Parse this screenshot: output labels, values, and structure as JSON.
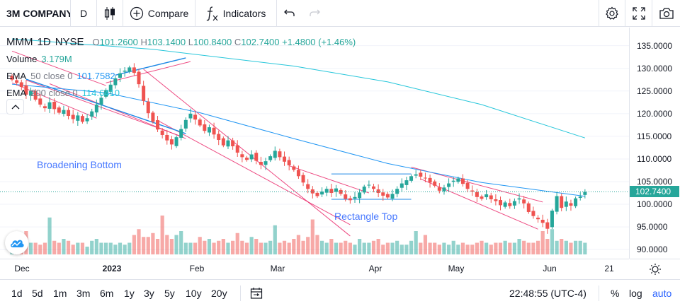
{
  "toolbar": {
    "symbol": "3M COMPANY",
    "interval": "D",
    "compare_label": "Compare",
    "indicators_label": "Indicators",
    "icons": [
      "chart-type-candles-icon",
      "compare-plus-icon",
      "indicators-fx-icon",
      "undo-icon",
      "redo-icon",
      "settings-gear-icon",
      "fullscreen-icon",
      "camera-icon"
    ]
  },
  "legend": {
    "ticker": "MMM",
    "interval": "1D",
    "exchange": "NYSE",
    "open_label": "O",
    "open": "101.2600",
    "high_label": "H",
    "high": "103.1400",
    "low_label": "L",
    "low": "100.8400",
    "close_label": "C",
    "close": "102.7400",
    "change": "+1.4800 (+1.46%)",
    "volume_name": "Volume",
    "volume_value": "3.179M",
    "ema50_name": "EMA",
    "ema50_params": "50 close 0",
    "ema50_value": "101.7582",
    "ema200_name": "EMA",
    "ema200_params": "200 close 0",
    "ema200_value": "114.6410"
  },
  "annotations": {
    "broadening_bottom": "Broadening Bottom",
    "rectangle_top": "Rectangle Top"
  },
  "price_axis": {
    "ticks": [
      "135.0000",
      "130.0000",
      "125.0000",
      "120.0000",
      "115.0000",
      "110.0000",
      "105.0000",
      "100.0000",
      "95.0000",
      "90.0000"
    ],
    "last_price": "102.7400"
  },
  "time_axis": {
    "ticks": [
      "Dec",
      "2023",
      "Feb",
      "Mar",
      "Apr",
      "May",
      "Jun",
      "21"
    ]
  },
  "bottom_bar": {
    "ranges": [
      "1d",
      "5d",
      "1m",
      "3m",
      "6m",
      "1y",
      "3y",
      "5y",
      "10y",
      "20y"
    ],
    "clock": "22:48:55 (UTC-4)",
    "percent_label": "%",
    "log_label": "log",
    "auto_label": "auto"
  },
  "colors": {
    "up": "#26a69a",
    "down": "#ef5350",
    "ema50": "#2196f3",
    "ema200": "#26c6da",
    "pattern_lines": "#e91e63",
    "accent": "#2962ff"
  },
  "chart_data": {
    "type": "candlestick",
    "ylim": [
      88,
      139
    ],
    "closes": [
      127.5,
      126.8,
      125.9,
      124.2,
      125.0,
      123.1,
      122.0,
      121.2,
      122.5,
      121.0,
      120.2,
      120.8,
      119.5,
      118.8,
      119.6,
      118.2,
      119.0,
      120.5,
      122.0,
      123.5,
      125.2,
      126.4,
      127.8,
      128.9,
      129.5,
      130.2,
      129.0,
      126.5,
      122.8,
      120.1,
      118.2,
      116.5,
      115.3,
      114.1,
      113.2,
      114.8,
      116.6,
      118.6,
      120.0,
      118.7,
      117.4,
      116.2,
      117.0,
      115.4,
      114.2,
      113.0,
      114.1,
      112.8,
      111.4,
      110.4,
      109.8,
      111.0,
      109.6,
      108.7,
      109.5,
      110.6,
      111.8,
      110.4,
      109.4,
      108.6,
      107.6,
      106.2,
      104.8,
      103.4,
      102.4,
      101.8,
      102.8,
      103.4,
      102.5,
      103.5,
      102.3,
      101.2,
      100.9,
      101.6,
      102.6,
      103.9,
      104.3,
      103.4,
      102.5,
      101.9,
      101.5,
      102.3,
      103.4,
      104.6,
      105.3,
      106.2,
      106.6,
      106.1,
      105.8,
      104.8,
      104.1,
      103.0,
      103.7,
      104.6,
      105.2,
      105.7,
      104.5,
      103.4,
      102.8,
      101.6,
      101.2,
      102.2,
      101.1,
      100.7,
      99.8,
      100.4,
      99.6,
      100.7,
      101.3,
      100.2,
      98.3,
      97.4,
      96.7,
      95.9,
      94.6,
      98.6,
      101.8,
      99.2,
      100.6,
      99.7,
      101.3,
      101.7,
      102.74
    ],
    "volume_levels": [
      0.35,
      0.3,
      0.25,
      0.6,
      0.3,
      0.3,
      0.25,
      0.3,
      0.95,
      0.35,
      0.3,
      0.4,
      0.35,
      0.25,
      0.3,
      0.3,
      0.2,
      0.35,
      0.4,
      0.3,
      0.3,
      0.3,
      0.25,
      0.3,
      0.25,
      0.3,
      0.5,
      0.65,
      0.45,
      0.45,
      0.55,
      0.4,
      1.0,
      0.5,
      0.4,
      0.5,
      0.6,
      0.3,
      0.3,
      0.3,
      0.45,
      0.35,
      0.4,
      0.3,
      0.35,
      0.4,
      0.3,
      0.35,
      0.55,
      0.35,
      0.3,
      0.45,
      0.4,
      0.3,
      0.3,
      0.35,
      0.75,
      0.3,
      0.35,
      0.3,
      0.4,
      0.5,
      0.35,
      0.45,
      0.9,
      0.5,
      0.35,
      0.3,
      0.4,
      0.3,
      0.3,
      0.35,
      0.3,
      0.25,
      0.4,
      0.3,
      0.3,
      0.35,
      0.4,
      0.25,
      0.3,
      0.3,
      0.35,
      0.25,
      0.25,
      0.35,
      0.6,
      0.3,
      0.5,
      0.3,
      0.3,
      0.25,
      0.3,
      0.25,
      0.35,
      0.25,
      0.3,
      0.25,
      0.25,
      0.3,
      0.35,
      0.3,
      0.25,
      0.3,
      0.3,
      0.35,
      0.3,
      0.3,
      0.4,
      0.35,
      0.3,
      0.3,
      0.35,
      0.6,
      0.4,
      0.65,
      0.35,
      0.4,
      0.35,
      0.3,
      0.35,
      0.35,
      0.3
    ],
    "ema50": [
      [
        0,
        126.5
      ],
      [
        20,
        124.6
      ],
      [
        40,
        120.2
      ],
      [
        60,
        114.5
      ],
      [
        80,
        109.0
      ],
      [
        100,
        104.8
      ],
      [
        122,
        101.76
      ]
    ],
    "ema200": [
      [
        0,
        136.5
      ],
      [
        30,
        134.2
      ],
      [
        60,
        130.5
      ],
      [
        80,
        127.0
      ],
      [
        100,
        122.0
      ],
      [
        122,
        114.64
      ]
    ],
    "patterns": [
      {
        "name": "Broadening Bottom"
      },
      {
        "name": "Rectangle Top",
        "top": 106.7,
        "bottom": 101.1
      }
    ]
  }
}
